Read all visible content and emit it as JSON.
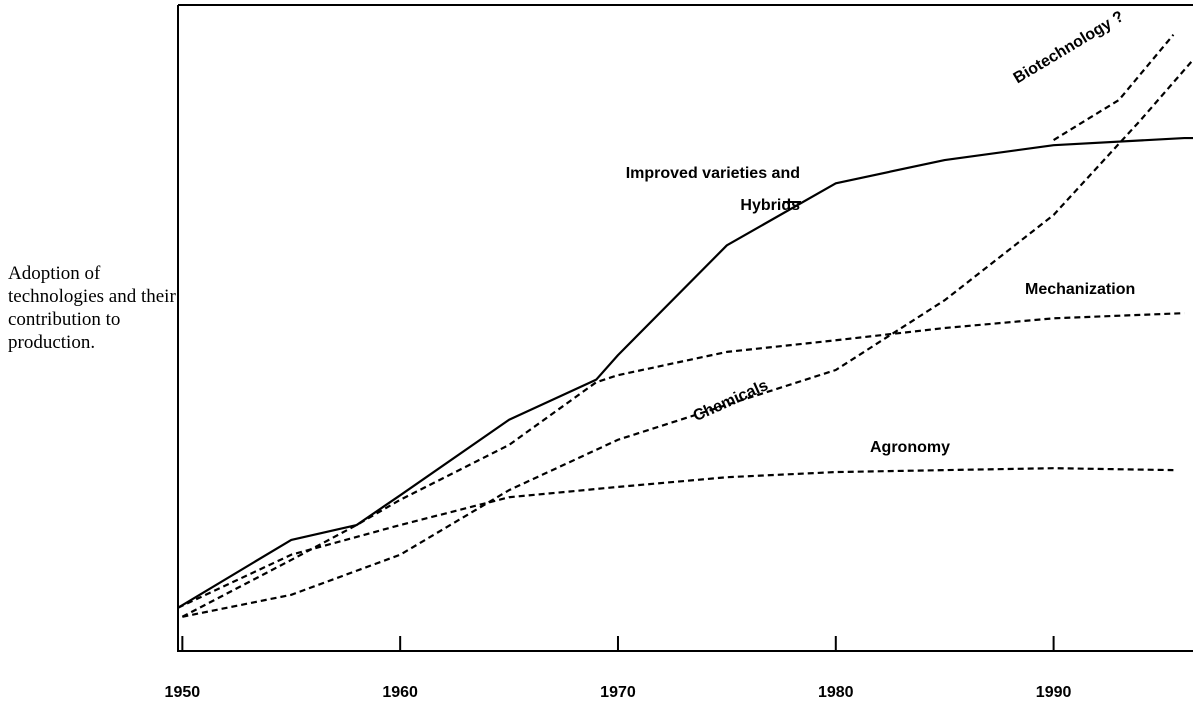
{
  "chart_data": {
    "type": "line",
    "y_label": "Adoption of technologies and their contribution to production.",
    "xlim": [
      1949.8,
      1996.4
    ],
    "xticks": [
      1950,
      1960,
      1970,
      1980,
      1990
    ],
    "ylim": [
      0,
      100
    ],
    "series": [
      {
        "name": "Improved varieties and Hybrids",
        "color": "#000000",
        "style": "solid",
        "x": [
          1949.8,
          1950,
          1955,
          1958,
          1960,
          1965,
          1969,
          1970,
          1975,
          1980,
          1985,
          1990,
          1996,
          1996.4
        ],
        "values": [
          6.7,
          7.1,
          17.2,
          19.5,
          24.1,
          35.8,
          42,
          45.8,
          62.8,
          72.4,
          76,
          78.3,
          79.4,
          79.4
        ]
      },
      {
        "name": "Biotechnology ?",
        "color": "#000000",
        "style": "dashed",
        "x": [
          1990,
          1993,
          1995.5
        ],
        "values": [
          79.1,
          85.3,
          95.4
        ]
      },
      {
        "name": "Chemicals",
        "color": "#000000",
        "style": "dashed",
        "x": [
          1950,
          1955,
          1960,
          1965,
          1970,
          1975,
          1980,
          1985,
          1990,
          1994,
          1996.4
        ],
        "values": [
          5.3,
          8.7,
          14.9,
          24.9,
          32.7,
          38.1,
          43.5,
          54.3,
          67.5,
          82.2,
          91.5
        ]
      },
      {
        "name": "Mechanization",
        "color": "#000000",
        "style": "dashed",
        "x": [
          1950,
          1955,
          1958,
          1960,
          1965,
          1969,
          1970,
          1975,
          1980,
          1985,
          1990,
          1996
        ],
        "values": [
          5.3,
          14.1,
          19.5,
          23.4,
          31.9,
          41.6,
          42.7,
          46.3,
          48.1,
          50,
          51.5,
          52.3
        ]
      },
      {
        "name": "Agronomy",
        "color": "#000000",
        "style": "dashed",
        "x": [
          1949.8,
          1955,
          1960,
          1965,
          1970,
          1975,
          1980,
          1985,
          1990,
          1995.5
        ],
        "values": [
          6.7,
          14.9,
          19.5,
          23.8,
          25.4,
          26.9,
          27.7,
          28,
          28.3,
          28
        ]
      }
    ]
  }
}
